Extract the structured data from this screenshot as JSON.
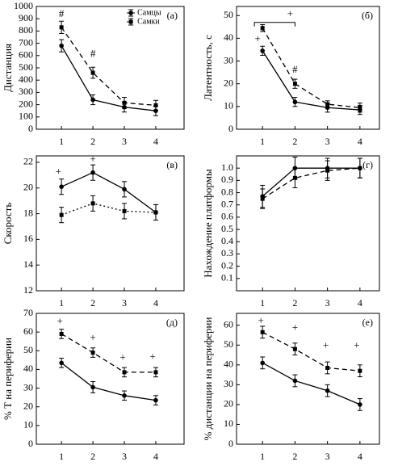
{
  "chart_data": [
    {
      "type": "line",
      "panel_label": "(а)",
      "y_label": "Дистанция",
      "x": [
        1,
        2,
        3,
        4
      ],
      "xticks": [
        1,
        2,
        3,
        4
      ],
      "xlim": [
        0.2,
        4.9
      ],
      "ylim": [
        0,
        1000
      ],
      "yticks": [
        0,
        100,
        200,
        300,
        400,
        500,
        600,
        700,
        800,
        900,
        1000
      ],
      "series": [
        {
          "name": "Самцы",
          "color": "#000000",
          "dash": "solid",
          "marker": "circle",
          "values": [
            680,
            240,
            180,
            150
          ],
          "errors": [
            50,
            40,
            40,
            40
          ]
        },
        {
          "name": "Самки",
          "color": "#000000",
          "dash": "dashed",
          "marker": "square",
          "values": [
            830,
            460,
            215,
            195
          ],
          "errors": [
            50,
            45,
            45,
            40
          ]
        }
      ],
      "annotations": [
        {
          "text": "#",
          "x": 1,
          "y": 935
        },
        {
          "text": "#",
          "x": 2,
          "y": 610
        }
      ]
    },
    {
      "type": "line",
      "panel_label": "(б)",
      "y_label": "Латентность, с",
      "x": [
        1,
        2,
        3,
        4
      ],
      "xticks": [
        1,
        2,
        3,
        4
      ],
      "xlim": [
        0.2,
        4.6
      ],
      "ylim": [
        0,
        54
      ],
      "yticks": [
        0,
        10,
        20,
        30,
        40,
        50
      ],
      "series": [
        {
          "color": "#000000",
          "dash": "solid",
          "marker": "circle",
          "values": [
            34.5,
            12,
            9.5,
            8.5
          ],
          "errors": [
            2,
            2,
            2,
            2
          ]
        },
        {
          "color": "#000000",
          "dash": "dashed",
          "marker": "square",
          "values": [
            44.5,
            20,
            11,
            9.5
          ],
          "errors": [
            1.5,
            2,
            1.5,
            2
          ]
        }
      ],
      "annotations": [
        {
          "text": "+",
          "x": 0.85,
          "y": 39.5
        },
        {
          "text": "+",
          "x": 1.85,
          "y": 50.5
        },
        {
          "text": "#",
          "x": 2,
          "y": 26
        }
      ],
      "brackets": [
        {
          "x1": 0.75,
          "x2": 2,
          "y": 47
        }
      ]
    },
    {
      "type": "line",
      "panel_label": "(в)",
      "y_label": "Скорость",
      "x": [
        1,
        2,
        3,
        4
      ],
      "xticks": [
        1,
        2,
        3,
        4
      ],
      "xlim": [
        0.2,
        4.9
      ],
      "ylim": [
        12,
        22.5
      ],
      "yticks": [
        12,
        14,
        16,
        18,
        20,
        22
      ],
      "series": [
        {
          "color": "#000000",
          "dash": "solid",
          "marker": "circle",
          "values": [
            20.1,
            21.2,
            19.9,
            18.1
          ],
          "errors": [
            0.6,
            0.6,
            0.6,
            0.6
          ]
        },
        {
          "color": "#000000",
          "dash": "dotted",
          "marker": "square",
          "values": [
            17.9,
            18.8,
            18.2,
            18.1
          ],
          "errors": [
            0.6,
            0.6,
            0.6,
            0.6
          ]
        }
      ],
      "annotations": [
        {
          "text": "+",
          "x": 0.9,
          "y": 21.2
        },
        {
          "text": "+",
          "x": 2,
          "y": 22.2
        }
      ]
    },
    {
      "type": "line",
      "panel_label": "(г)",
      "y_label": "Нахождение платформы",
      "x": [
        1,
        2,
        3,
        4
      ],
      "xticks": [
        1,
        2,
        3,
        4
      ],
      "xlim": [
        0.2,
        4.6
      ],
      "ylim": [
        0,
        1.1
      ],
      "yticks": [
        0.1,
        0.2,
        0.3,
        0.4,
        0.5,
        0.6,
        0.7,
        0.8,
        0.9,
        {
          "value": 1,
          "label": "1.0"
        }
      ],
      "series": [
        {
          "color": "#000000",
          "dash": "solid",
          "marker": "circle",
          "values": [
            0.77,
            1.0,
            1.0,
            1.0
          ],
          "errors": [
            0.09,
            0.09,
            0.08,
            0.08
          ]
        },
        {
          "color": "#000000",
          "dash": "dashed",
          "marker": "square",
          "values": [
            0.75,
            0.92,
            0.98,
            1.0
          ],
          "errors": [
            0.08,
            0.08,
            0.08,
            0.08
          ]
        }
      ],
      "annotations": []
    },
    {
      "type": "line",
      "panel_label": "(д)",
      "y_label": "% Т на периферии",
      "x": [
        1,
        2,
        3,
        4
      ],
      "xticks": [
        1,
        2,
        3,
        4
      ],
      "xlim": [
        0.2,
        4.9
      ],
      "ylim": [
        0,
        70
      ],
      "yticks": [
        0,
        10,
        20,
        30,
        40,
        50,
        60,
        70
      ],
      "series": [
        {
          "color": "#000000",
          "dash": "solid",
          "marker": "circle",
          "values": [
            43.5,
            30.5,
            26,
            23.5
          ],
          "errors": [
            2.5,
            3,
            2.5,
            2.5
          ]
        },
        {
          "color": "#000000",
          "dash": "dashed",
          "marker": "square",
          "values": [
            59,
            49,
            38.5,
            38.5
          ],
          "errors": [
            2.5,
            2.5,
            2.5,
            2.5
          ]
        }
      ],
      "annotations": [
        {
          "text": "+",
          "x": 0.95,
          "y": 65.5
        },
        {
          "text": "+",
          "x": 2,
          "y": 56.5
        },
        {
          "text": "+",
          "x": 2.95,
          "y": 46
        },
        {
          "text": "+",
          "x": 3.9,
          "y": 46.5
        }
      ]
    },
    {
      "type": "line",
      "panel_label": "(е)",
      "y_label": "% дистанции на периферии",
      "x": [
        1,
        2,
        3,
        4
      ],
      "xticks": [
        1,
        2,
        3,
        4
      ],
      "xlim": [
        0.2,
        4.6
      ],
      "ylim": [
        0,
        66
      ],
      "yticks": [
        0,
        10,
        20,
        30,
        40,
        50,
        60
      ],
      "series": [
        {
          "color": "#000000",
          "dash": "solid",
          "marker": "circle",
          "values": [
            41,
            32,
            27,
            20
          ],
          "errors": [
            3,
            3,
            3,
            3
          ]
        },
        {
          "color": "#000000",
          "dash": "dashed",
          "marker": "square",
          "values": [
            56.5,
            48,
            38.5,
            37
          ],
          "errors": [
            3,
            3,
            3,
            3
          ]
        }
      ],
      "annotations": [
        {
          "text": "+",
          "x": 0.95,
          "y": 62
        },
        {
          "text": "+",
          "x": 2,
          "y": 58.5
        },
        {
          "text": "+",
          "x": 2.95,
          "y": 49.5
        },
        {
          "text": "+",
          "x": 3.9,
          "y": 49.5
        }
      ]
    }
  ]
}
